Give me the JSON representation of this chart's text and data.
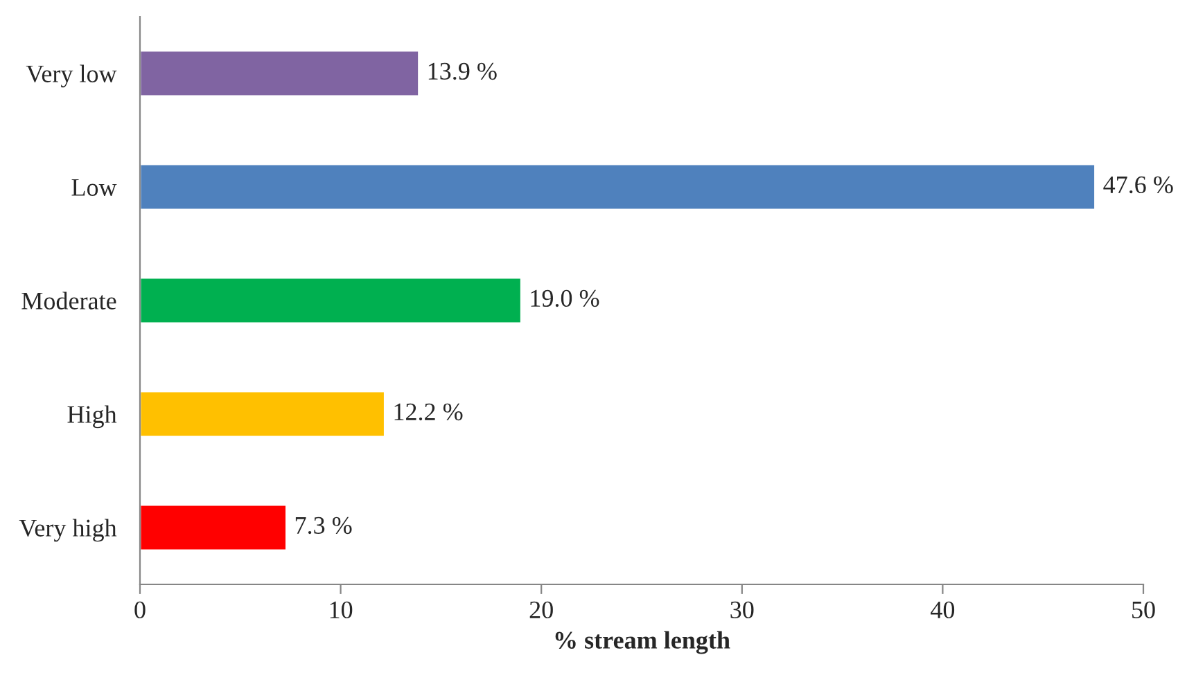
{
  "chart_data": {
    "type": "bar",
    "orientation": "horizontal",
    "categories": [
      "Very low",
      "Low",
      "Moderate",
      "High",
      "Very high"
    ],
    "values": [
      13.9,
      47.6,
      19.0,
      12.2,
      7.3
    ],
    "colors": [
      "#8064a2",
      "#4f81bd",
      "#00b050",
      "#ffc000",
      "#ff0000"
    ],
    "value_labels": [
      "13.9 %",
      "47.6 %",
      "19.0 %",
      "12.2 %",
      "7.3 %"
    ],
    "xlabel": "% stream length",
    "xlim": [
      0,
      50
    ],
    "xticks": [
      0,
      10,
      20,
      30,
      40,
      50
    ],
    "grid": false,
    "legend": false
  }
}
